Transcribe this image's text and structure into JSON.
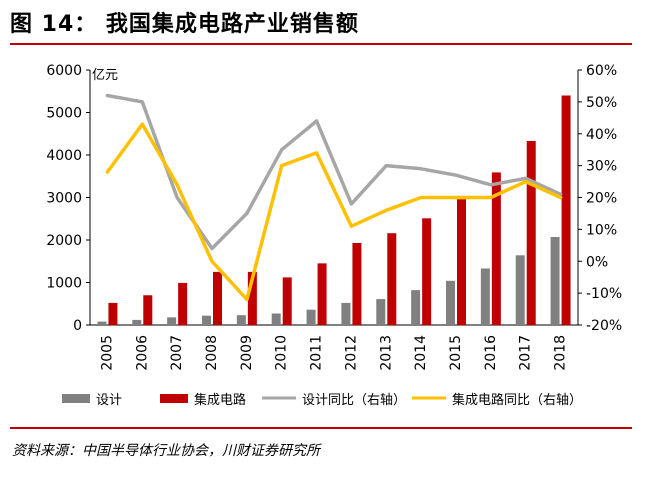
{
  "title": "图 14：  我国集成电路产业销售额",
  "source": "资料来源：中国半导体行业协会，川财证券研究所",
  "chart_data": {
    "type": "bar",
    "unit_label": "亿元",
    "categories": [
      "2005",
      "2006",
      "2007",
      "2008",
      "2009",
      "2010",
      "2011",
      "2012",
      "2013",
      "2014",
      "2015",
      "2016",
      "2017",
      "2018"
    ],
    "y_left": {
      "min": 0,
      "max": 6000,
      "ticks": [
        "0",
        "1000",
        "2000",
        "3000",
        "4000",
        "5000",
        "6000"
      ]
    },
    "y_right": {
      "min": -20,
      "max": 60,
      "ticks": [
        "-20%",
        "-10%",
        "0%",
        "10%",
        "20%",
        "30%",
        "40%",
        "50%",
        "60%"
      ]
    },
    "series": [
      {
        "name": "设计",
        "kind": "bar",
        "axis": "left",
        "color": "#808080",
        "values": [
          80,
          120,
          180,
          220,
          230,
          270,
          360,
          520,
          610,
          820,
          1040,
          1330,
          1640,
          2070
        ]
      },
      {
        "name": "集成电路",
        "kind": "bar",
        "axis": "left",
        "color": "#c00000",
        "values": [
          520,
          700,
          990,
          1250,
          1250,
          1120,
          1450,
          1930,
          2160,
          2510,
          2960,
          3590,
          4330,
          5400
        ]
      },
      {
        "name": "设计同比（右轴）",
        "kind": "line",
        "axis": "right",
        "color": "#a6a6a6",
        "values": [
          52,
          50,
          20,
          4,
          15,
          35,
          44,
          18,
          30,
          29,
          27,
          24,
          26,
          21
        ]
      },
      {
        "name": "集成电路同比（右轴）",
        "kind": "line",
        "axis": "right",
        "color": "#ffc000",
        "values": [
          28,
          43,
          24,
          0,
          -12,
          30,
          34,
          11,
          16,
          20,
          20,
          20,
          25,
          20
        ]
      }
    ],
    "legend_position": "bottom",
    "grid": false
  }
}
